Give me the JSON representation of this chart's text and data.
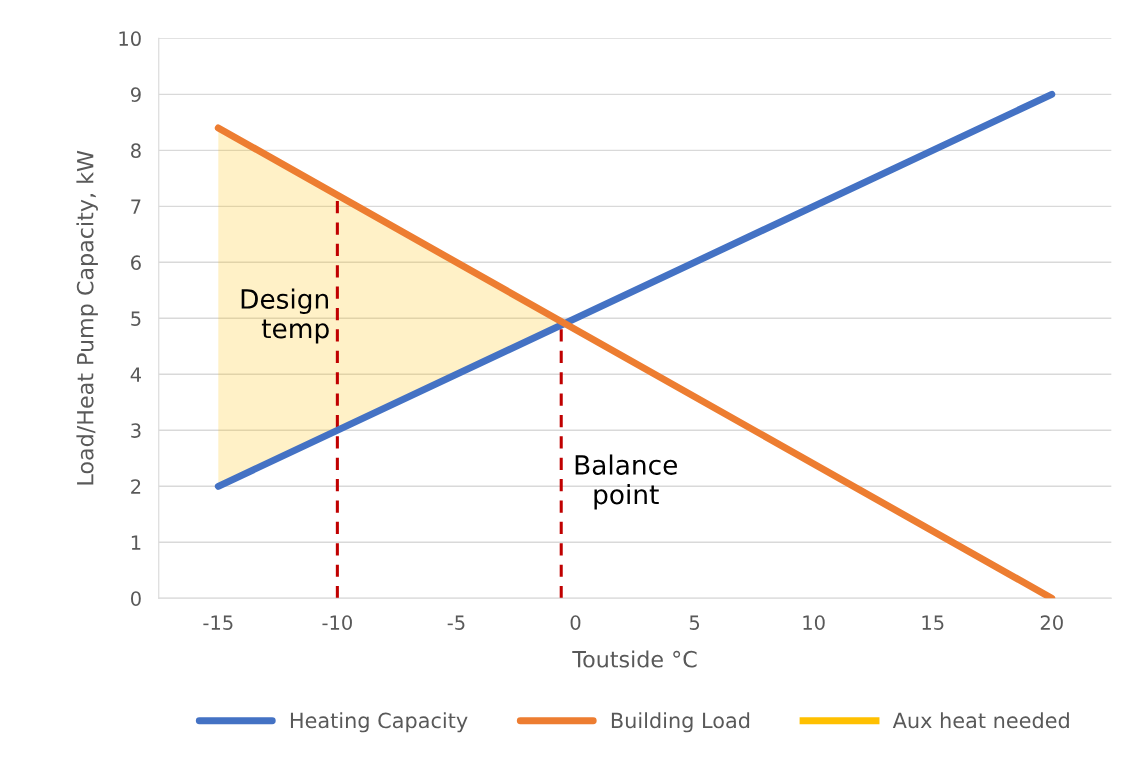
{
  "chart_data": {
    "type": "line",
    "xlabel": "Toutside °C",
    "ylabel": "Load/Heat Pump Capacity, kW",
    "xlim": [
      -17.5,
      22.5
    ],
    "xticks": [
      -15,
      -10,
      -5,
      0,
      5,
      10,
      15,
      20
    ],
    "ylim": [
      0,
      10
    ],
    "yticks": [
      0,
      1,
      2,
      3,
      4,
      5,
      6,
      7,
      8,
      9,
      10
    ],
    "grid": "y",
    "legend": "bottom",
    "line_style": "solid",
    "marker": "none",
    "series": [
      {
        "name": "Heating Capacity",
        "color": "#4472c4",
        "x": [
          -15,
          20
        ],
        "values": [
          2,
          9
        ]
      },
      {
        "name": "Building Load",
        "color": "#ed7d31",
        "x": [
          -15,
          20
        ],
        "values": [
          8.4,
          0
        ]
      },
      {
        "name": "Aux heat needed",
        "type": "area",
        "color": "#ffc000",
        "x": [
          -15,
          -0.6
        ],
        "values": [
          8.4,
          4.9
        ]
      }
    ],
    "ref_lines": [
      {
        "axis": "x",
        "value": -10,
        "label": "Design temp",
        "color": "#c00000",
        "line_style": "dashed"
      },
      {
        "axis": "x",
        "value": -0.6,
        "label": "Balance point",
        "color": "#c00000",
        "line_style": "dashed"
      }
    ]
  }
}
